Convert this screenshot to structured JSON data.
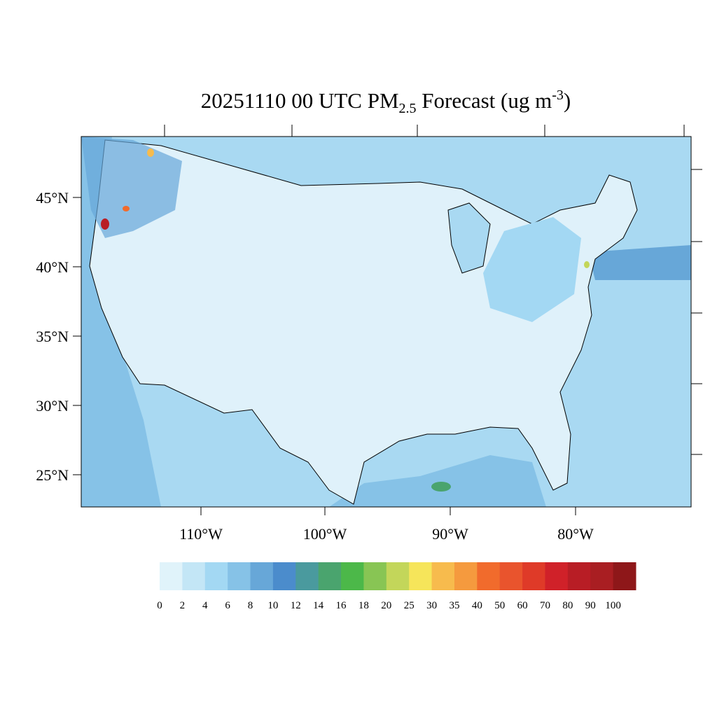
{
  "title": {
    "main": "20251110 00 UTC PM",
    "sub": "2.5",
    "after": " Forecast (ug m",
    "sup": "-3",
    "end": ")"
  },
  "lat_labels": [
    "45°N",
    "40°N",
    "35°N",
    "30°N",
    "25°N"
  ],
  "lon_labels": [
    "110°W",
    "100°W",
    "90°W",
    "80°W"
  ],
  "colorbar": {
    "colors": [
      "#e0f3fa",
      "#c3e6f6",
      "#a3d8f3",
      "#86c2e7",
      "#67a7d8",
      "#4b8ccc",
      "#4a9a9e",
      "#4aa46e",
      "#4cb849",
      "#88c554",
      "#c3d65a",
      "#f6e55a",
      "#f7bb4d",
      "#f59a3e",
      "#f16b2c",
      "#e9542d",
      "#df3a28",
      "#d02129",
      "#b81d25",
      "#a91e22",
      "#8e1719"
    ],
    "labels": [
      0,
      2,
      4,
      6,
      8,
      10,
      12,
      14,
      16,
      18,
      20,
      25,
      30,
      35,
      40,
      50,
      60,
      70,
      80,
      90,
      100
    ]
  }
}
